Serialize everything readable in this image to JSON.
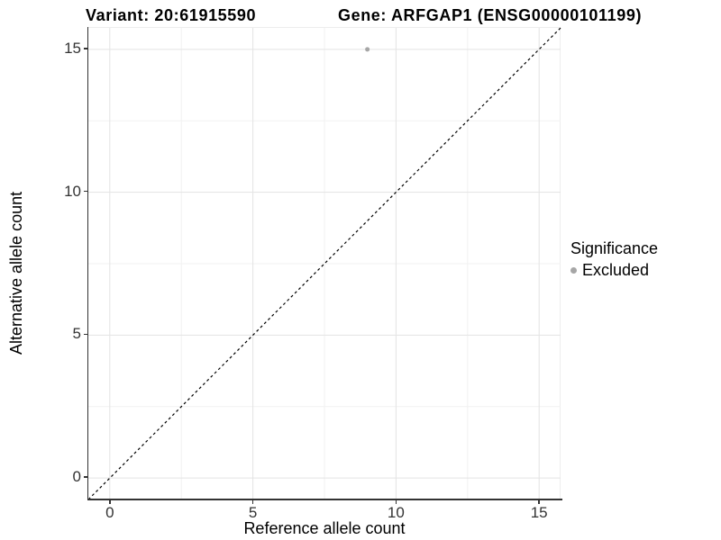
{
  "chart_data": {
    "type": "scatter",
    "titles": {
      "left": "Variant: 20:61915590",
      "right": "Gene: ARFGAP1 (ENSG00000101199)"
    },
    "xlabel": "Reference allele count",
    "ylabel": "Alternative allele count",
    "xlim": [
      -0.75,
      15.75
    ],
    "ylim": [
      -0.75,
      15.75
    ],
    "xticks": [
      0,
      5,
      10,
      15
    ],
    "yticks": [
      0,
      5,
      10,
      15
    ],
    "x_minor_gridlines": [
      2.5,
      7.5,
      12.5
    ],
    "y_minor_gridlines": [
      2.5,
      7.5,
      12.5
    ],
    "grid": "major+minor",
    "legend": {
      "title": "Significance",
      "position": "right",
      "items": [
        {
          "label": "Excluded",
          "color": "#a6a6a6",
          "marker": "circle"
        }
      ]
    },
    "series": [
      {
        "name": "Excluded",
        "color": "#a6a6a6",
        "marker_diameter_px": 5,
        "points": [
          {
            "x": 9,
            "y": 15
          }
        ]
      }
    ],
    "reference_line": {
      "type": "identity y=x",
      "style": "dashed",
      "color": "#000000",
      "from": [
        -0.75,
        -0.75
      ],
      "to": [
        15.75,
        15.75
      ]
    }
  },
  "colors": {
    "background": "#ffffff",
    "grid_major": "#e3e3e3",
    "grid_minor": "#f1f1f1",
    "axis_line": "#333333",
    "tick_label": "#333333",
    "title": "#000000",
    "point": "#a6a6a6"
  }
}
